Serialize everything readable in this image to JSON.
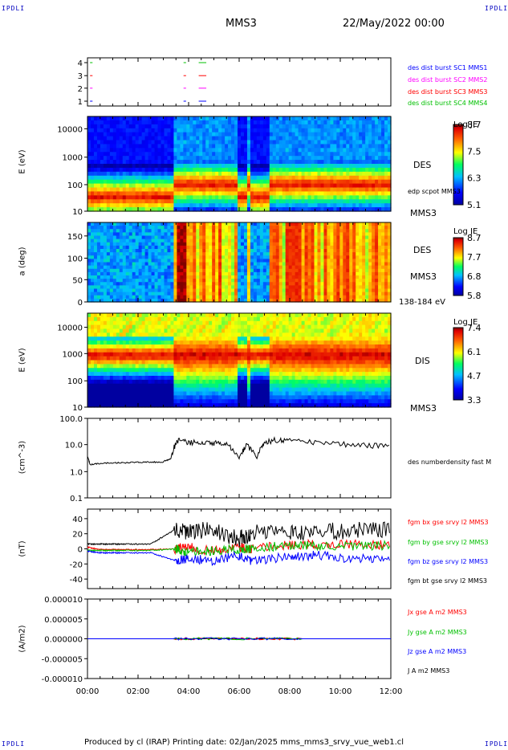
{
  "corner_label": "IPDLI",
  "header": {
    "title": "MMS3",
    "date": "22/May/2022 00:00"
  },
  "footer": "Produced by cl (IRAP)   Printing date: 02/Jan/2025   mms_mms3_srvy_vue_web1.cl",
  "chart_data": [
    {
      "type": "table",
      "name": "burst-availability",
      "yticks": [
        "1",
        "2",
        "3",
        "4"
      ],
      "legend": [
        {
          "text": "des dist burst SC1 MMS1",
          "color": "#0000ff"
        },
        {
          "text": "des dist burst SC2 MMS2",
          "color": "#ff00ff"
        },
        {
          "text": "des dist burst SC3 MMS3",
          "color": "#ff0000"
        },
        {
          "text": "des dist burst SC4 MMS4",
          "color": "#00c000"
        }
      ]
    },
    {
      "type": "heatmap",
      "name": "des-energy-spectrogram",
      "ylabel": "E (eV)",
      "yticks": [
        "10000",
        "1000",
        "100",
        "10"
      ],
      "scale": "log",
      "right_labels": [
        "DES",
        "edp scpot MMS3",
        "MMS3"
      ],
      "colorbar": {
        "title": "Log JE",
        "ticks": [
          "8.7",
          "7.5",
          "6.3",
          "5.1"
        ]
      }
    },
    {
      "type": "heatmap",
      "name": "des-pitch-angle",
      "ylabel": "a (deg)",
      "yticks": [
        "150",
        "100",
        "50",
        "0"
      ],
      "right_labels": [
        "DES",
        "MMS3",
        "138-184 eV"
      ],
      "colorbar": {
        "title": "Log JE",
        "ticks": [
          "8.7",
          "7.7",
          "6.8",
          "5.8"
        ]
      }
    },
    {
      "type": "heatmap",
      "name": "dis-energy-spectrogram",
      "ylabel": "E (eV)",
      "yticks": [
        "10000",
        "1000",
        "100",
        "10"
      ],
      "scale": "log",
      "right_labels": [
        "DIS",
        "MMS3"
      ],
      "colorbar": {
        "title": "Log JE",
        "ticks": [
          "7.4",
          "6.1",
          "4.7",
          "3.3"
        ]
      }
    },
    {
      "type": "line",
      "name": "density",
      "ylabel": "(cm^-3)",
      "yticks": [
        "100.0",
        "10.0",
        "1.0",
        "0.1"
      ],
      "scale": "log",
      "ylim": [
        0.1,
        100
      ],
      "series": [
        {
          "name": "des numberdensity fast M",
          "color": "#000000"
        }
      ],
      "x": [
        0,
        0.1,
        0.5,
        1,
        1.5,
        2,
        2.5,
        3,
        3.3,
        3.6,
        4,
        4.5,
        5,
        5.5,
        6,
        6.3,
        6.7,
        7,
        7.5,
        8,
        9,
        10,
        11,
        12
      ],
      "values": [
        3.5,
        1.8,
        2.0,
        2.1,
        2.1,
        2.2,
        2.2,
        2.3,
        3,
        15,
        12,
        14,
        12,
        11,
        3,
        10,
        3,
        12,
        16,
        15,
        13,
        11,
        10,
        9
      ]
    },
    {
      "type": "line",
      "name": "magnetic-field",
      "ylabel": "(nT)",
      "yticks": [
        "40",
        "20",
        "0",
        "-20",
        "-40"
      ],
      "ylim": [
        -50,
        50
      ],
      "series": [
        {
          "name": "fgm bx gse srvy l2 MMS3",
          "color": "#ff0000",
          "values": [
            2,
            -1,
            -1,
            -1,
            -1,
            0,
            2,
            -3,
            2,
            0,
            5,
            6,
            6,
            5
          ]
        },
        {
          "name": "fgm by gse srvy l2 MMS3",
          "color": "#00c000",
          "values": [
            -2,
            -2,
            -2,
            -2,
            -2,
            0,
            -5,
            -2,
            0,
            0,
            5,
            4,
            4,
            4
          ]
        },
        {
          "name": "fgm bz gse srvy l2 MMS3",
          "color": "#0000ff",
          "values": [
            -3,
            -5,
            -5,
            -5,
            -5,
            -15,
            -12,
            -15,
            -8,
            -15,
            -10,
            -8,
            -12,
            -14
          ]
        },
        {
          "name": "fgm bt gse srvy l2 MMS3",
          "color": "#000000",
          "values": [
            6,
            6,
            6,
            6,
            6,
            25,
            22,
            24,
            12,
            20,
            22,
            22,
            23,
            25
          ]
        }
      ],
      "x": [
        0,
        0.5,
        1,
        1.5,
        2.5,
        3.5,
        4,
        5,
        6,
        6.5,
        8,
        9,
        10.5,
        12
      ]
    },
    {
      "type": "line",
      "name": "current-density",
      "ylabel": "(A/m2)",
      "yticks": [
        "0.000010",
        "0.000005",
        "0.000000",
        "-0.000005",
        "-0.000010"
      ],
      "ylim": [
        -1e-05,
        1e-05
      ],
      "series": [
        {
          "name": "Jx gse A m2 MMS3",
          "color": "#ff0000"
        },
        {
          "name": "Jy gse A m2 MMS3",
          "color": "#00c000"
        },
        {
          "name": "Jz gse A m2 MMS3",
          "color": "#0000ff"
        },
        {
          "name": "J A m2 MMS3",
          "color": "#000000"
        }
      ]
    }
  ],
  "xaxis": {
    "ticks": [
      "00:00",
      "02:00",
      "04:00",
      "06:00",
      "08:00",
      "10:00",
      "12:00"
    ],
    "range": [
      0,
      12
    ]
  }
}
